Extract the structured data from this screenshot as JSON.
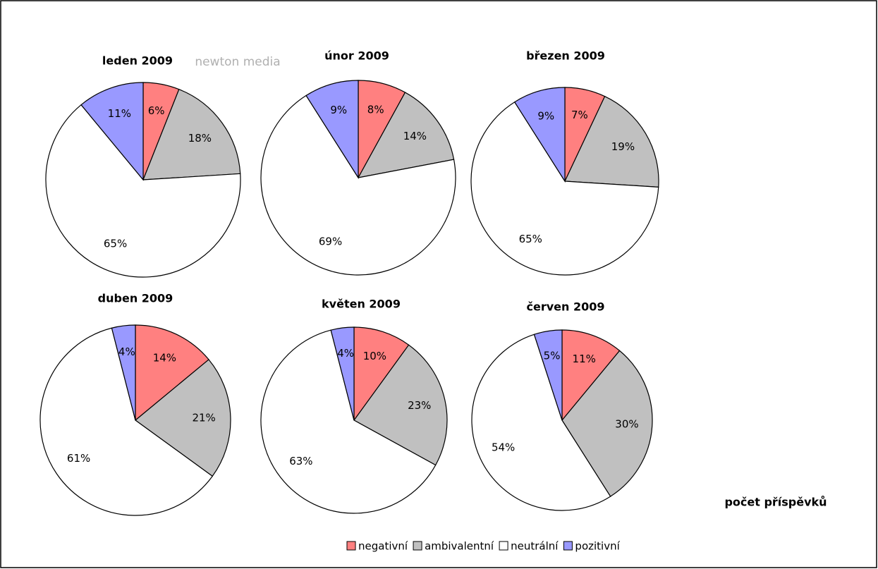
{
  "chart_data": [
    {
      "type": "pie",
      "title": "leden 2009",
      "values": [
        6,
        18,
        65,
        11
      ],
      "value_labels": [
        "6%",
        "18%",
        "65%",
        "11%"
      ]
    },
    {
      "type": "pie",
      "title": "únor 2009",
      "values": [
        8,
        14,
        69,
        9
      ],
      "value_labels": [
        "8%",
        "14%",
        "69%",
        "9%"
      ]
    },
    {
      "type": "pie",
      "title": "březen 2009",
      "values": [
        7,
        19,
        65,
        9
      ],
      "value_labels": [
        "7%",
        "19%",
        "65%",
        "9%"
      ]
    },
    {
      "type": "pie",
      "title": "duben 2009",
      "values": [
        14,
        21,
        61,
        4
      ],
      "value_labels": [
        "14%",
        "21%",
        "61%",
        "4%"
      ]
    },
    {
      "type": "pie",
      "title": "květen 2009",
      "values": [
        10,
        23,
        63,
        4
      ],
      "value_labels": [
        "10%",
        "23%",
        "63%",
        "4%"
      ]
    },
    {
      "type": "pie",
      "title": "červen 2009",
      "values": [
        11,
        30,
        54,
        5
      ],
      "value_labels": [
        "11%",
        "30%",
        "54%",
        "5%"
      ]
    }
  ],
  "legend": {
    "names": [
      "negativní",
      "ambivalentní",
      "neutrální",
      "pozitivní"
    ],
    "colors": [
      "#ff8080",
      "#c0c0c0",
      "#ffffff",
      "#9999ff"
    ]
  },
  "note": "počet příspěvků",
  "watermark": "newton media"
}
